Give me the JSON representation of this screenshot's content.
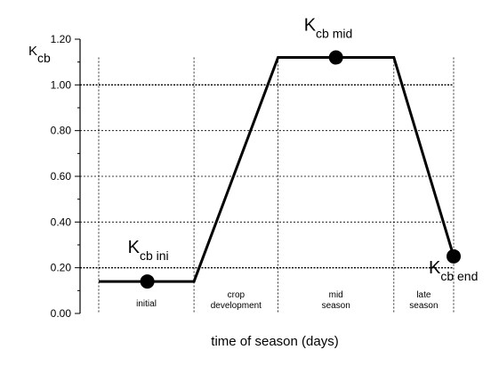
{
  "chart_data": {
    "type": "line",
    "title": "",
    "xlabel": "time of season (days)",
    "ylabel": {
      "main": "K",
      "sub": "cb"
    },
    "ylim": [
      0,
      1.2
    ],
    "yticks": [
      "0.00",
      "0.20",
      "0.40",
      "0.60",
      "0.80",
      "1.00",
      "1.20"
    ],
    "x_relative_range": [
      0,
      100
    ],
    "grid": "horizontal dotted at 0.2 steps; heavier at 0.20 and 1.00",
    "stage_boundaries_relative": [
      5,
      30.5,
      53,
      84,
      100
    ],
    "stages": [
      {
        "lines": [
          "initial"
        ]
      },
      {
        "lines": [
          "crop",
          "development"
        ]
      },
      {
        "lines": [
          "mid",
          "season"
        ]
      },
      {
        "lines": [
          "late",
          "season"
        ]
      }
    ],
    "series": [
      {
        "points": [
          [
            5,
            0.14
          ],
          [
            30.5,
            0.14
          ],
          [
            53,
            1.12
          ],
          [
            84,
            1.12
          ],
          [
            100,
            0.25
          ]
        ]
      }
    ],
    "markers": [
      {
        "x": 18,
        "y": 0.14,
        "label_main": "K",
        "label_sub": "cb ini"
      },
      {
        "x": 68.5,
        "y": 1.12,
        "label_main": "K",
        "label_sub": "cb mid"
      },
      {
        "x": 100,
        "y": 0.25,
        "label_main": "K",
        "label_sub": "cb end"
      }
    ]
  }
}
